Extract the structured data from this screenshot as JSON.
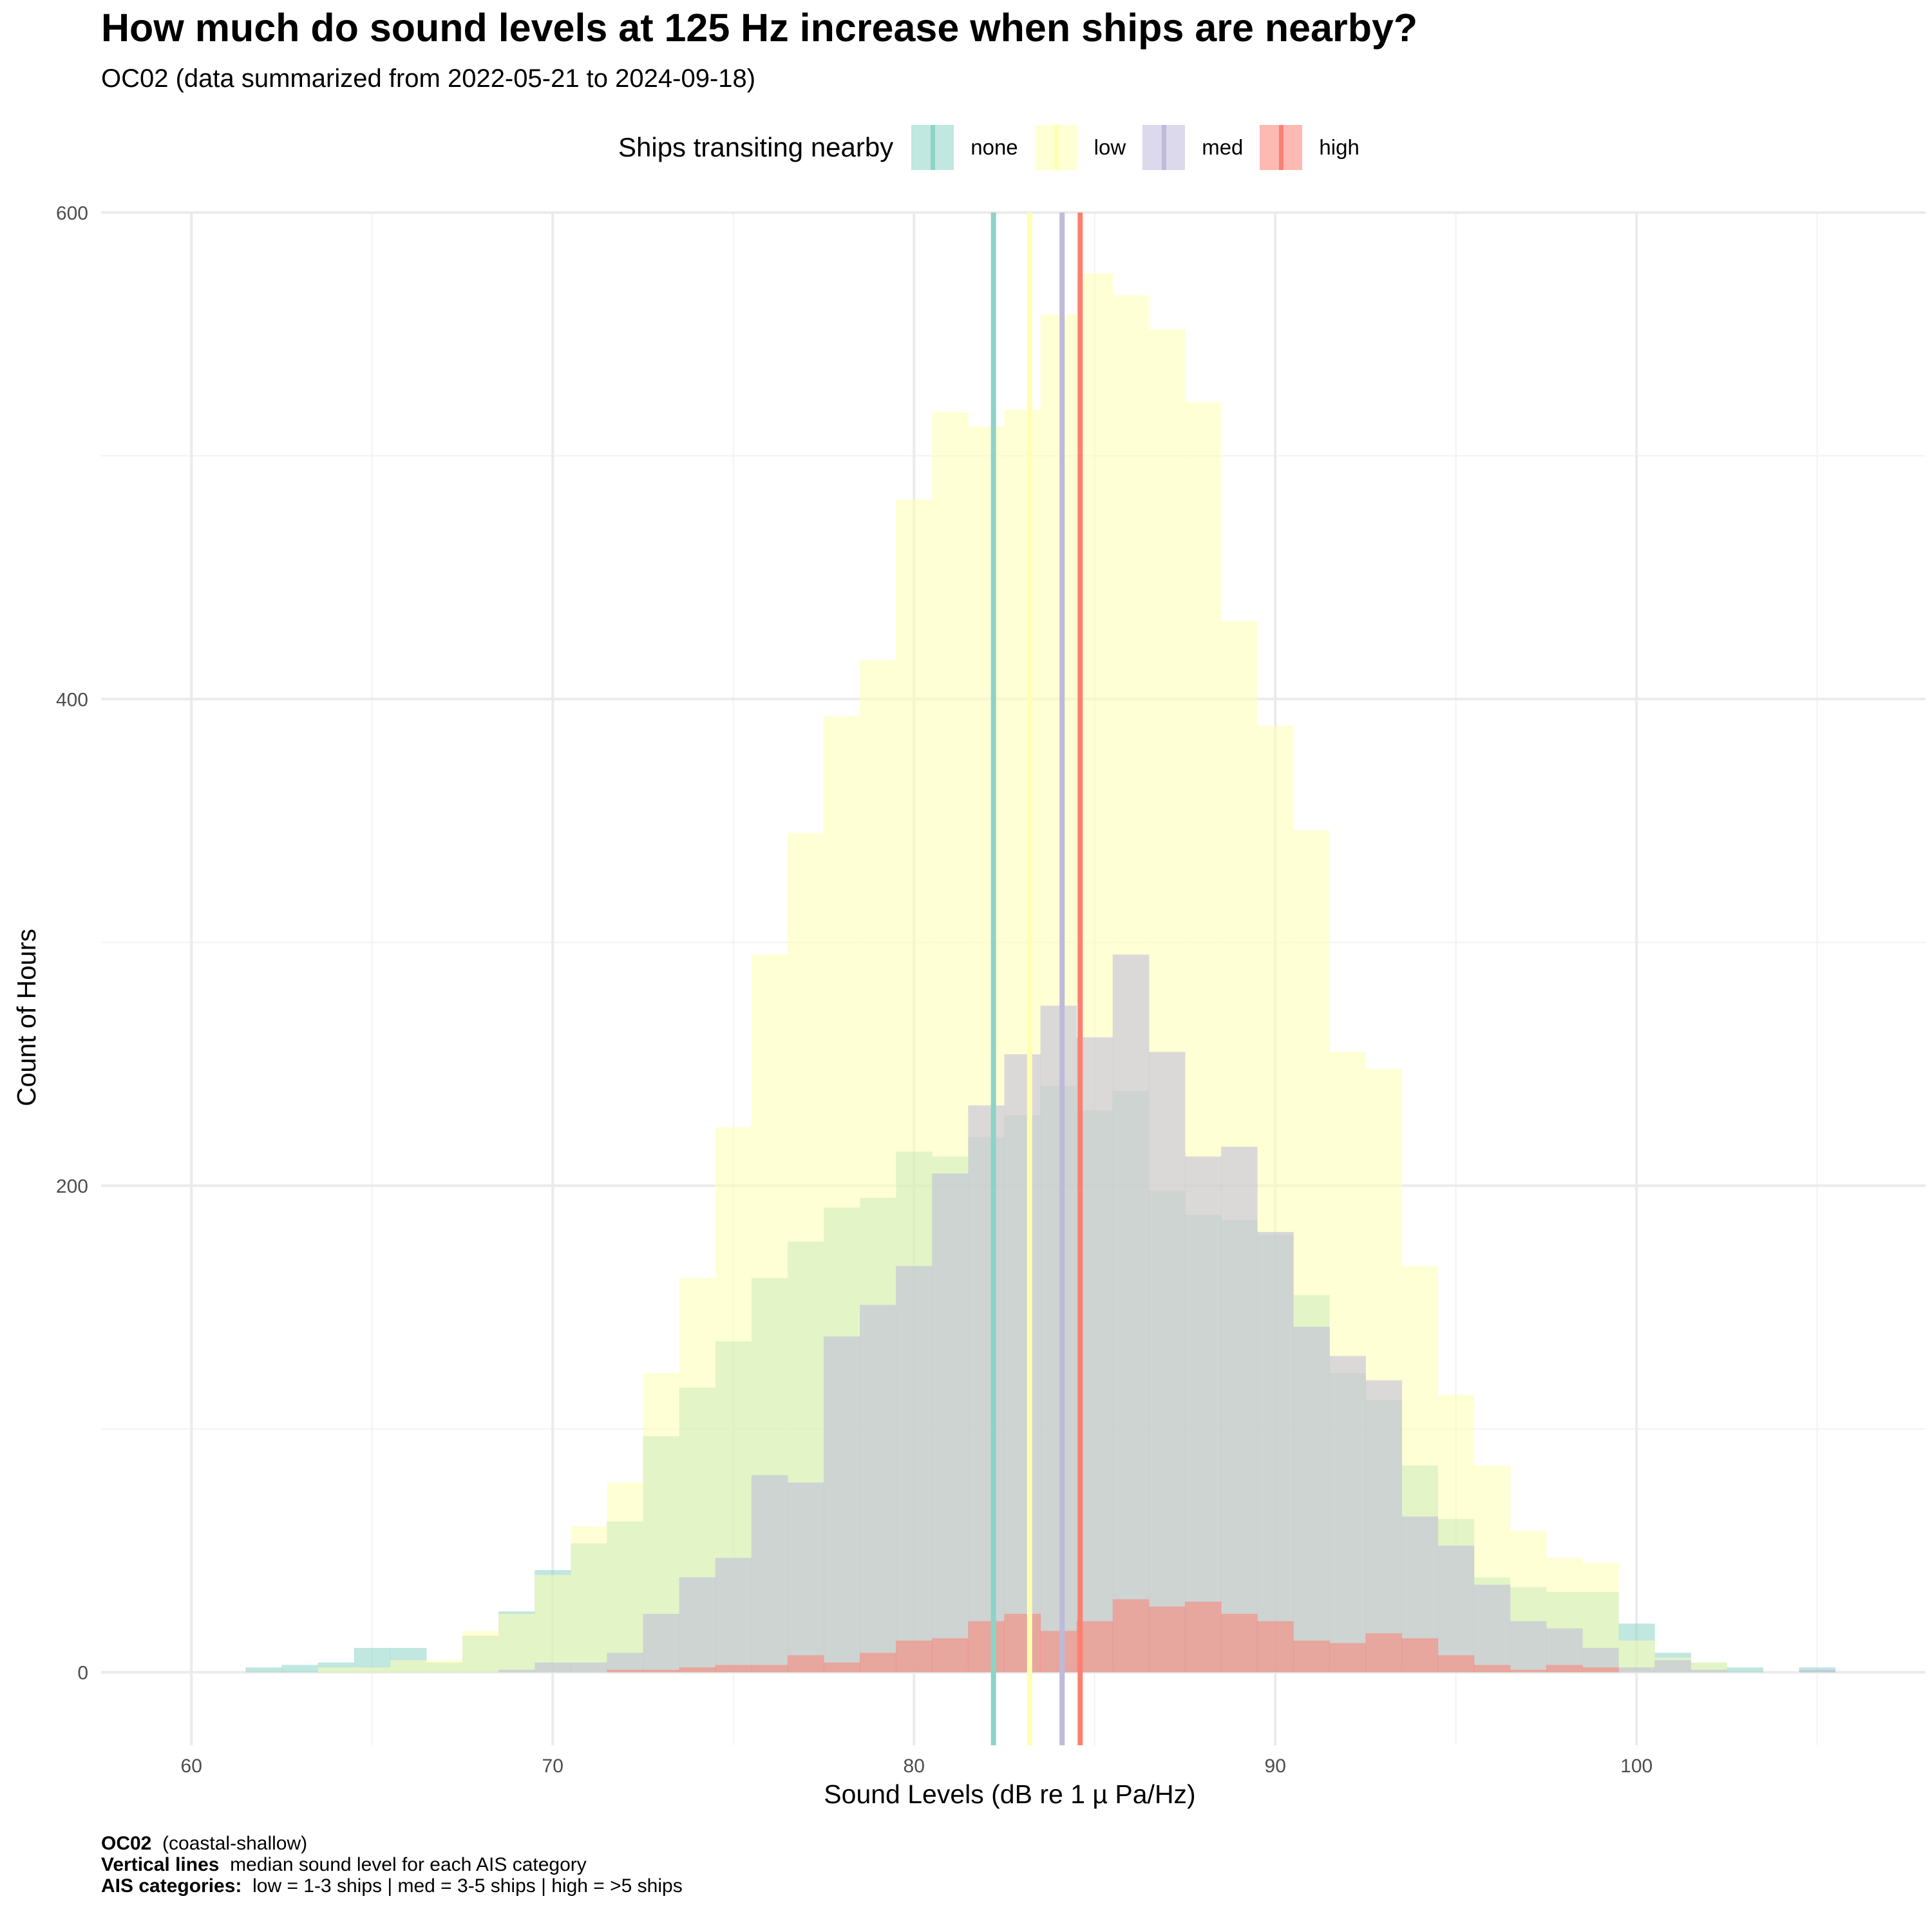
{
  "title": "How much do sound levels at 125 Hz increase when ships are nearby?",
  "subtitle": "OC02 (data summarized from 2022-05-21 to 2024-09-18)",
  "legend": {
    "title": "Ships transiting nearby",
    "items": [
      {
        "label": "none",
        "color": "#8DD3C7"
      },
      {
        "label": "low",
        "color": "#FFFFB3"
      },
      {
        "label": "med",
        "color": "#BEBADA"
      },
      {
        "label": "high",
        "color": "#FB8072"
      }
    ]
  },
  "caption": {
    "line1_bold": "OC02",
    "line1_rest": "(coastal-shallow)",
    "line2_bold": "Vertical lines",
    "line2_rest": "median sound level for each AIS category",
    "line3_bold": "AIS categories:",
    "line3_rest": "low = 1-3 ships | med = 3-5 ships | high = >5 ships"
  },
  "chart_data": {
    "type": "histogram",
    "title": "How much do sound levels at 125 Hz increase when ships are nearby?",
    "subtitle": "OC02 (data summarized from 2022-05-21 to 2024-09-18)",
    "xlabel": "Sound Levels (dB re 1 µ Pa/Hz)",
    "ylabel": "Count of Hours",
    "xlim": [
      57.5,
      108
    ],
    "ylim": [
      -30,
      600
    ],
    "x_ticks": [
      60,
      70,
      80,
      90,
      100
    ],
    "y_ticks": [
      0,
      200,
      400,
      600
    ],
    "bin_start": 61.5,
    "bin_width": 1,
    "grid": true,
    "legend_position": "top",
    "series": [
      {
        "name": "none",
        "color": "#8DD3C7",
        "values": [
          2,
          3,
          4,
          10,
          10,
          4,
          15,
          25,
          42,
          53,
          62,
          97,
          117,
          136,
          162,
          177,
          191,
          195,
          214,
          212,
          220,
          229,
          241,
          231,
          239,
          198,
          188,
          186,
          180,
          155,
          123,
          112,
          85,
          63,
          39,
          35,
          33,
          33,
          20,
          8,
          4,
          2,
          0,
          2
        ]
      },
      {
        "name": "low",
        "color": "#FFFFB3",
        "values": [
          0,
          0,
          2,
          2,
          5,
          5,
          17,
          24,
          40,
          60,
          78,
          123,
          162,
          224,
          295,
          345,
          393,
          416,
          482,
          518,
          512,
          519,
          558,
          575,
          566,
          552,
          522,
          432,
          389,
          346,
          255,
          248,
          167,
          114,
          85,
          58,
          47,
          45,
          13,
          6,
          4,
          0,
          0,
          0
        ]
      },
      {
        "name": "med",
        "color": "#BEBADA",
        "values": [
          0,
          0,
          0,
          0,
          0,
          0,
          0,
          1,
          4,
          4,
          8,
          24,
          39,
          47,
          81,
          78,
          138,
          151,
          167,
          205,
          233,
          254,
          274,
          261,
          295,
          255,
          212,
          216,
          181,
          142,
          130,
          120,
          64,
          52,
          36,
          21,
          18,
          10,
          2,
          5,
          1,
          0,
          0,
          1
        ]
      },
      {
        "name": "high",
        "color": "#FB8072",
        "values": [
          0,
          0,
          0,
          0,
          0,
          0,
          0,
          0,
          0,
          0,
          1,
          1,
          2,
          3,
          3,
          7,
          4,
          8,
          13,
          14,
          21,
          24,
          17,
          21,
          30,
          27,
          29,
          24,
          21,
          13,
          12,
          16,
          14,
          7,
          3,
          1,
          3,
          2,
          0,
          0,
          0,
          0,
          0,
          0
        ]
      }
    ],
    "medians": [
      {
        "name": "none",
        "value": 82.2
      },
      {
        "name": "low",
        "value": 83.2
      },
      {
        "name": "med",
        "value": 84.1
      },
      {
        "name": "high",
        "value": 84.6
      }
    ]
  }
}
